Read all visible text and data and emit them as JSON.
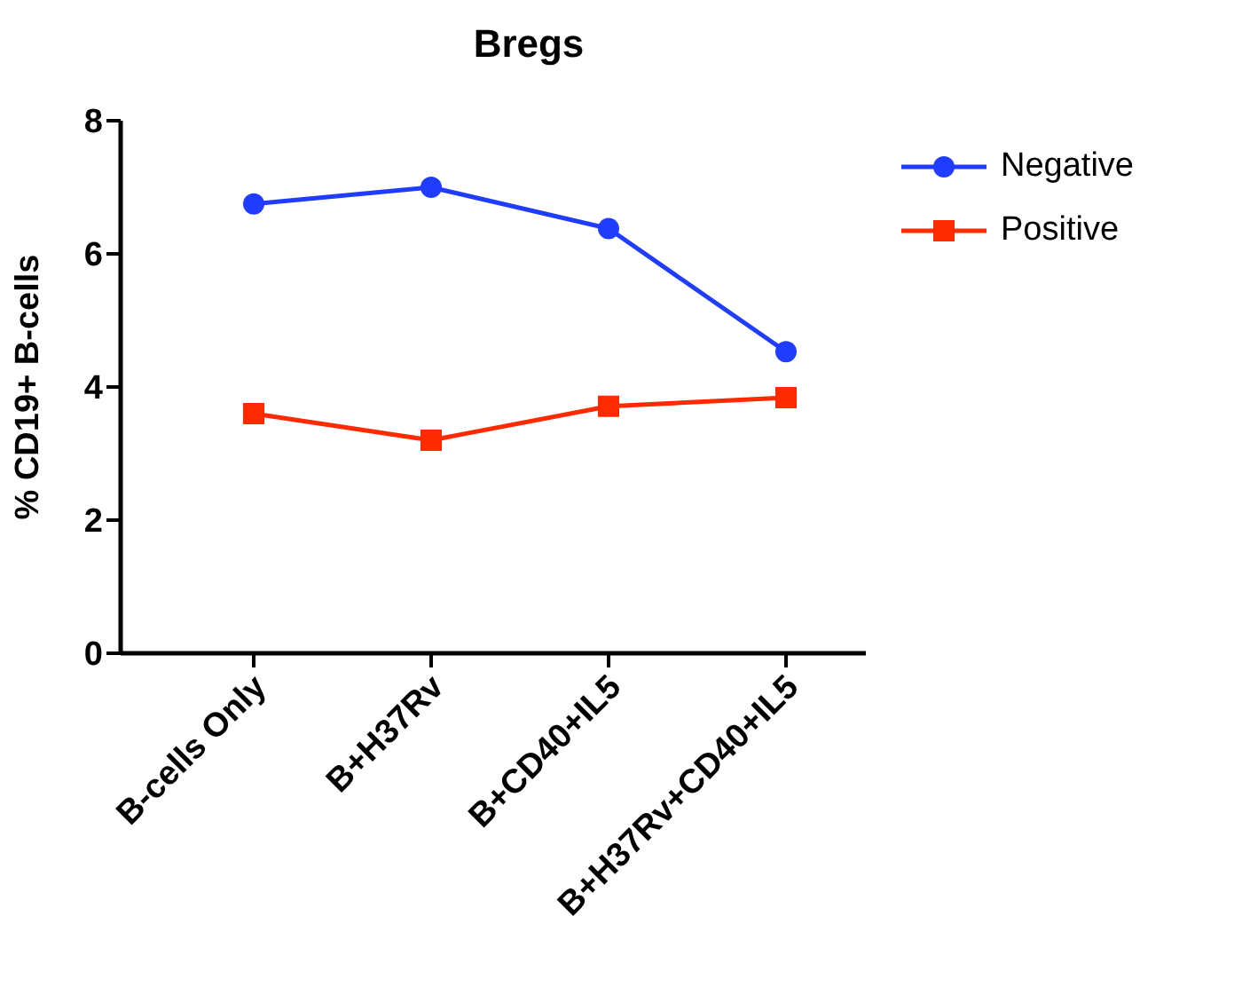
{
  "chart_data": {
    "type": "line",
    "title": "Bregs",
    "ylabel": "% CD19+ B-cells",
    "categories": [
      "B-cells Only",
      "B+H37Rv",
      "B+CD40+IL5",
      "B+H37Rv+CD40+IL5"
    ],
    "series": [
      {
        "name": "Negative",
        "color": "#1f3cff",
        "values": [
          6.75,
          7.0,
          6.38,
          4.53
        ],
        "marker": "circle"
      },
      {
        "name": "Positive",
        "color": "#ff2a00",
        "values": [
          3.6,
          3.2,
          3.71,
          3.84
        ],
        "marker": "square"
      }
    ],
    "ylim": [
      0,
      8
    ],
    "yticks": [
      0,
      2,
      4,
      6,
      8
    ],
    "grid": false,
    "legend": "top right",
    "line_style": "solid"
  }
}
